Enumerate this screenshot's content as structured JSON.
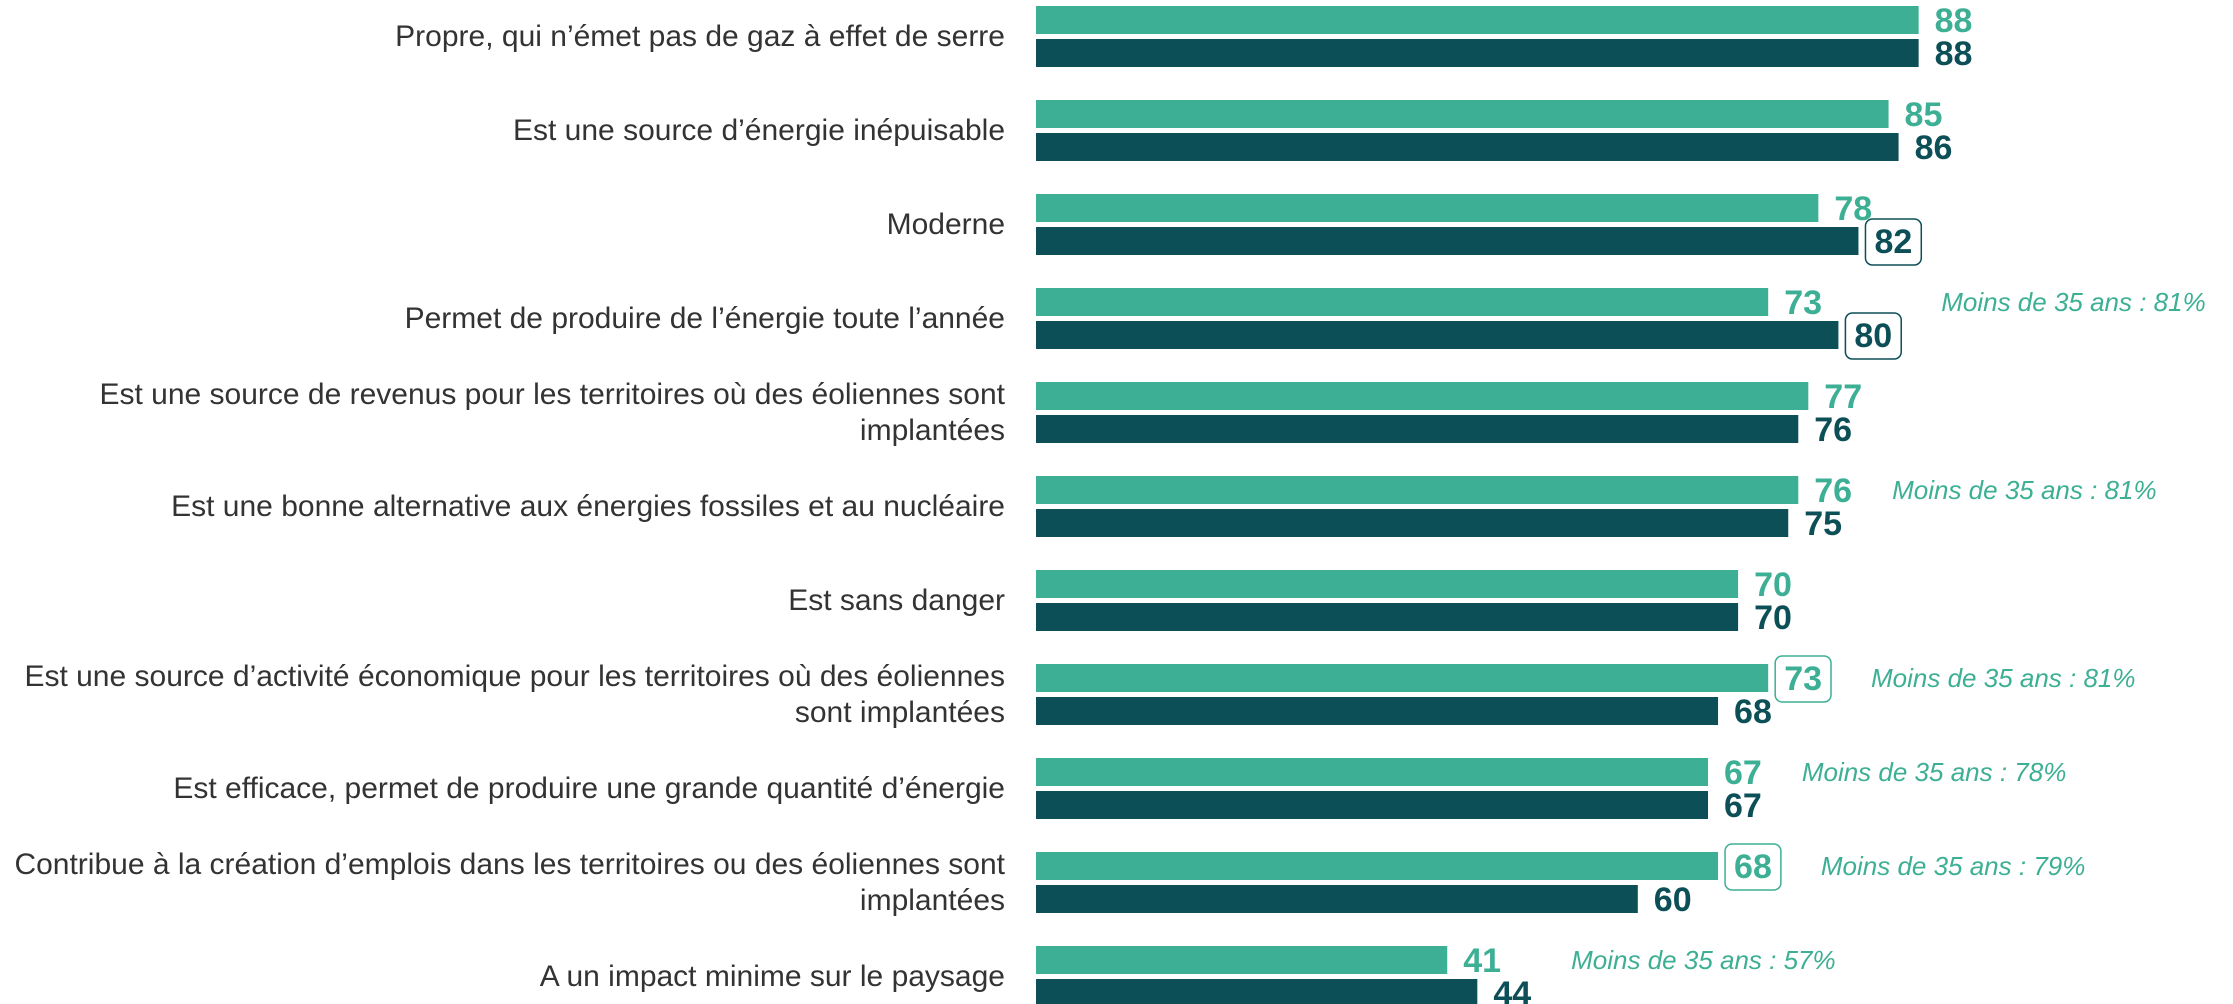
{
  "chart_data": {
    "type": "bar",
    "orientation": "horizontal",
    "categories": [
      "Propre, qui n’émet pas de gaz à effet de serre",
      "Est une source d’énergie inépuisable",
      "Moderne",
      "Permet de produire de l’énergie toute l’année",
      "Est une source de revenus pour les territoires où des éoliennes sont implantées",
      "Est une bonne alternative aux énergies fossiles et au nucléaire",
      "Est sans danger",
      "Est une source d’activité économique pour les territoires où des éoliennes sont implantées",
      "Est efficace, permet de produire une grande quantité d’énergie",
      "Contribue à la création d’emplois dans les territoires ou des éoliennes sont implantées",
      "A un impact minime sur le paysage"
    ],
    "series": [
      {
        "color": "#3daf94",
        "values": [
          88,
          85,
          78,
          73,
          77,
          76,
          70,
          73,
          67,
          68,
          41
        ],
        "highlight": [
          false,
          false,
          false,
          false,
          false,
          false,
          false,
          true,
          false,
          true,
          false
        ]
      },
      {
        "color": "#0c4f57",
        "values": [
          88,
          86,
          82,
          80,
          76,
          75,
          70,
          68,
          67,
          60,
          44
        ],
        "highlight": [
          false,
          false,
          true,
          true,
          false,
          false,
          false,
          false,
          false,
          false,
          false
        ]
      }
    ],
    "annotations": [
      null,
      null,
      null,
      "Moins de 35 ans : 81%",
      null,
      "Moins de 35 ans : 81%",
      null,
      "Moins de 35 ans : 81%",
      "Moins de 35 ans : 78%",
      "Moins de 35 ans : 79%",
      "Moins de 35 ans : 57%"
    ],
    "xlim": [
      0,
      100
    ]
  }
}
